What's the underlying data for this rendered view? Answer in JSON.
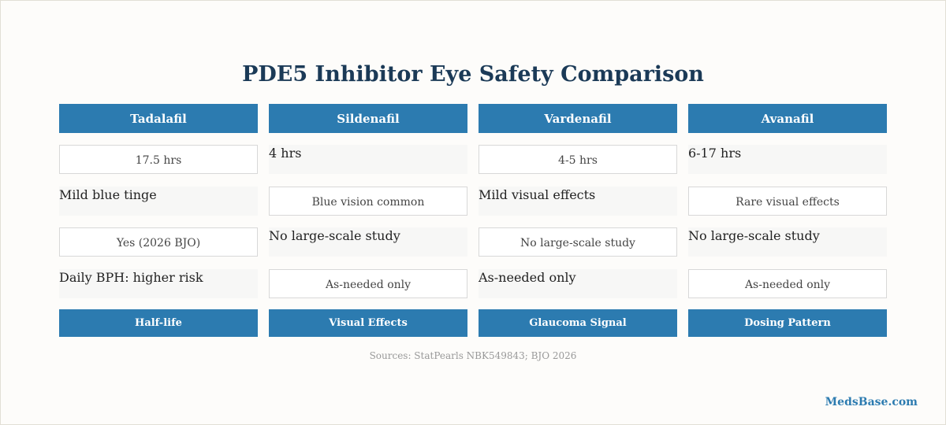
{
  "title": "PDE5 Inhibitor Eye Safety Comparison",
  "table": {
    "headers": [
      "Tadalafil",
      "Sildenafil",
      "Vardenafil",
      "Avanafil"
    ],
    "rows": [
      [
        "17.5 hrs",
        "4 hrs",
        "4-5 hrs",
        "6-17 hrs"
      ],
      [
        "Mild blue tinge",
        "Blue vision common",
        "Mild visual effects",
        "Rare visual effects"
      ],
      [
        "Yes (2026 BJO)",
        "No large-scale study",
        "No large-scale study",
        "No large-scale study"
      ],
      [
        "Daily BPH: higher risk",
        "As-needed only",
        "As-needed only",
        "As-needed only"
      ]
    ],
    "footer": [
      "Half-life",
      "Visual Effects",
      "Glaucoma Signal",
      "Dosing Pattern"
    ]
  },
  "sources": "Sources: StatPearls NBK549843; BJO 2026",
  "brand": "MedsBase.com"
}
